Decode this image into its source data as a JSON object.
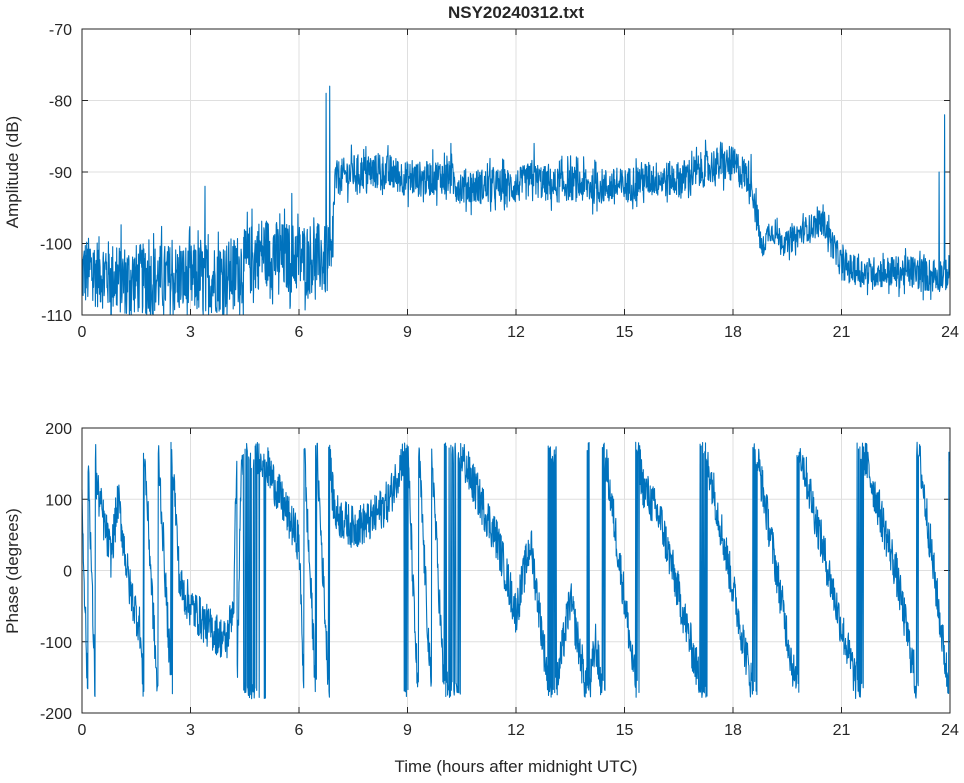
{
  "chart_data": [
    {
      "type": "line",
      "title": "NSY20240312.txt",
      "xlabel": "",
      "ylabel": "Amplitude (dB)",
      "xlim": [
        0,
        24
      ],
      "ylim": [
        -110,
        -70
      ],
      "xticks": [
        0,
        3,
        6,
        9,
        12,
        15,
        18,
        21,
        24
      ],
      "yticks": [
        -110,
        -100,
        -90,
        -80,
        -70
      ],
      "grid": true,
      "color": "#0072BD",
      "trend": [
        [
          0,
          -104
        ],
        [
          0.5,
          -104
        ],
        [
          1,
          -105
        ],
        [
          1.5,
          -105
        ],
        [
          2,
          -105
        ],
        [
          2.5,
          -105
        ],
        [
          3,
          -105
        ],
        [
          3.5,
          -105
        ],
        [
          4,
          -104.5
        ],
        [
          4.5,
          -103
        ],
        [
          5,
          -101
        ],
        [
          5.5,
          -102
        ],
        [
          6,
          -102
        ],
        [
          6.5,
          -102
        ],
        [
          6.9,
          -103
        ],
        [
          7.0,
          -91
        ],
        [
          7.5,
          -90
        ],
        [
          8,
          -90
        ],
        [
          8.5,
          -90
        ],
        [
          9,
          -91
        ],
        [
          9.5,
          -91
        ],
        [
          10,
          -90.5
        ],
        [
          10.5,
          -92
        ],
        [
          11,
          -92
        ],
        [
          11.5,
          -92
        ],
        [
          12,
          -92
        ],
        [
          12.5,
          -91
        ],
        [
          13,
          -92
        ],
        [
          13.5,
          -91.5
        ],
        [
          14,
          -92
        ],
        [
          14.5,
          -92
        ],
        [
          15,
          -92
        ],
        [
          15.5,
          -91
        ],
        [
          16,
          -91
        ],
        [
          16.5,
          -91
        ],
        [
          17,
          -90
        ],
        [
          17.5,
          -89
        ],
        [
          18,
          -89
        ],
        [
          18.5,
          -91
        ],
        [
          18.8,
          -101
        ],
        [
          19,
          -98
        ],
        [
          19.5,
          -100
        ],
        [
          20,
          -98
        ],
        [
          20.5,
          -97
        ],
        [
          21,
          -103
        ],
        [
          21.5,
          -104
        ],
        [
          22,
          -104
        ],
        [
          22.5,
          -104
        ],
        [
          23,
          -104
        ],
        [
          23.5,
          -104.5
        ],
        [
          24,
          -104
        ]
      ],
      "spread": [
        [
          0,
          5
        ],
        [
          6.95,
          5
        ],
        [
          7.0,
          2.5
        ],
        [
          18.7,
          2.5
        ],
        [
          18.8,
          1.5
        ],
        [
          21,
          2
        ],
        [
          24,
          2.5
        ]
      ],
      "spikes": [
        [
          3.4,
          -92
        ],
        [
          5.8,
          -93
        ],
        [
          6.75,
          -79
        ],
        [
          6.85,
          -78
        ],
        [
          10.2,
          -86
        ],
        [
          12.5,
          -86
        ],
        [
          23.7,
          -90
        ],
        [
          23.85,
          -82
        ]
      ]
    },
    {
      "type": "line",
      "title": "",
      "xlabel": "Time (hours after midnight UTC)",
      "ylabel": "Phase (degrees)",
      "xlim": [
        0,
        24
      ],
      "ylim": [
        -200,
        200
      ],
      "xticks": [
        0,
        3,
        6,
        9,
        12,
        15,
        18,
        21,
        24
      ],
      "yticks": [
        -200,
        -100,
        0,
        100,
        200
      ],
      "grid": true,
      "color": "#0072BD",
      "wrap": [
        -180,
        180
      ],
      "unwrapped_trend": [
        [
          0,
          100
        ],
        [
          0.4,
          -600
        ],
        [
          0.8,
          -700
        ],
        [
          1.0,
          -620
        ],
        [
          1.3,
          -740
        ],
        [
          1.6,
          -800
        ],
        [
          2.7,
          -1820
        ],
        [
          3.0,
          -1850
        ],
        [
          3.5,
          -1880
        ],
        [
          4.0,
          -1900
        ],
        [
          4.2,
          -1840
        ],
        [
          4.4,
          -1300
        ],
        [
          4.5,
          -1260
        ],
        [
          5.0,
          -1280
        ],
        [
          5.5,
          -1340
        ],
        [
          6.0,
          -1400
        ],
        [
          6.2,
          -1700
        ],
        [
          6.9,
          -2400
        ],
        [
          7.0,
          -2440
        ],
        [
          7.5,
          -2460
        ],
        [
          8.0,
          -2450
        ],
        [
          8.5,
          -2420
        ],
        [
          9.0,
          -2340
        ],
        [
          9.2,
          -2600
        ],
        [
          10.0,
          -3400
        ],
        [
          10.5,
          -3440
        ],
        [
          11.0,
          -3500
        ],
        [
          11.5,
          -3560
        ],
        [
          12.0,
          -3660
        ],
        [
          12.4,
          -3560
        ],
        [
          13.0,
          -3800
        ],
        [
          13.5,
          -3640
        ],
        [
          14.0,
          -3780
        ],
        [
          14.2,
          -3700
        ],
        [
          15.0,
          -4000
        ],
        [
          15.5,
          -4200
        ],
        [
          16.0,
          -4250
        ],
        [
          17.2,
          -4500
        ],
        [
          18.6,
          -4860
        ],
        [
          19.8,
          -5220
        ],
        [
          21.0,
          -5480
        ],
        [
          22.5,
          -5760
        ],
        [
          23.0,
          -5900
        ],
        [
          24.0,
          -6300
        ]
      ],
      "noise_deg": 30
    }
  ]
}
